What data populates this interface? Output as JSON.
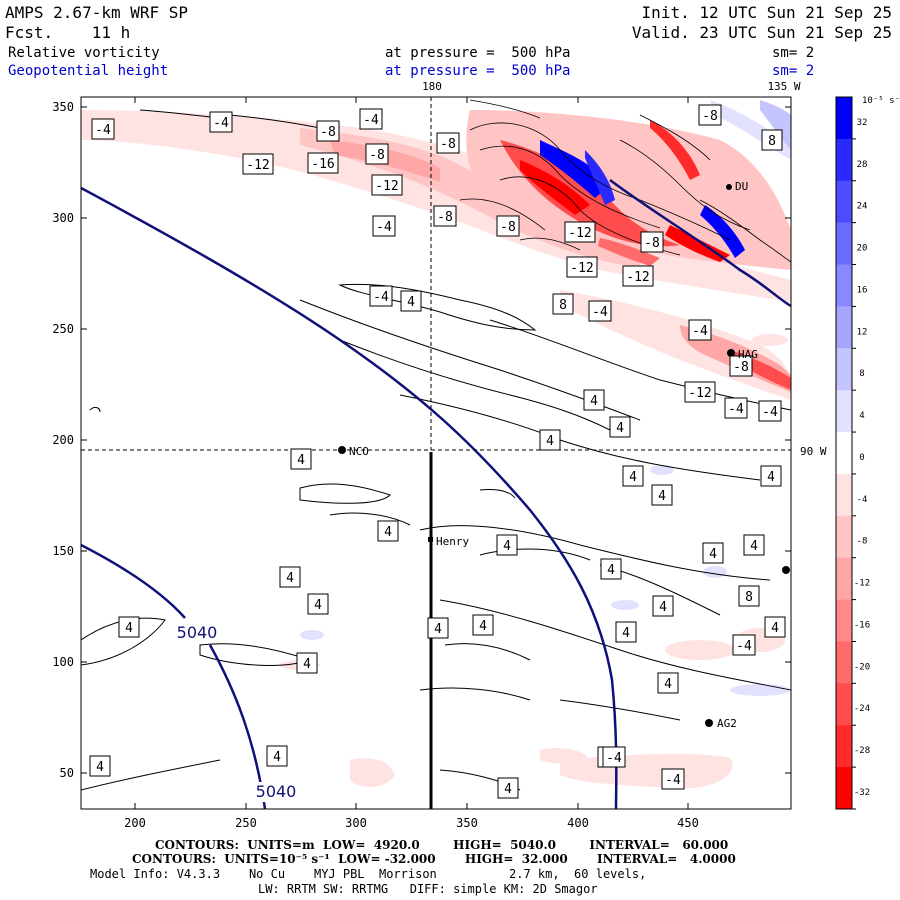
{
  "header": {
    "model": "AMPS 2.67-km WRF SP",
    "init": "Init. 12 UTC Sun 21 Sep 25",
    "fcst": "Fcst.    11 h",
    "valid": "Valid. 23 UTC Sun 21 Sep 25",
    "field1": "Relative vorticity",
    "field1_level": "at pressure =  500 hPa",
    "field1_sm": "sm= 2",
    "field2": "Geopotential height",
    "field2_level": "at pressure =  500 hPa",
    "field2_sm": "sm= 2"
  },
  "map": {
    "lon_labels": [
      "180",
      "135 W",
      "90 W"
    ],
    "x_ticks": [
      "200",
      "250",
      "300",
      "350",
      "400",
      "450"
    ],
    "y_ticks": [
      "50",
      "100",
      "150",
      "200",
      "250",
      "300",
      "350"
    ],
    "stations": [
      "NCO",
      "Henry",
      "HAG",
      "AG2",
      "DU"
    ],
    "height_contour_labels": [
      "5040",
      "5040"
    ],
    "vorticity_labels": [
      "-4",
      "-4",
      "-8",
      "-4",
      "-8",
      "-12",
      "-16",
      "-8",
      "-12",
      "-8",
      "-4",
      "-8",
      "-12",
      "-8",
      "-12",
      "-12",
      "-8",
      "8",
      "8",
      "-4",
      "-4",
      "-8",
      "-12",
      "-4",
      "-4",
      "-4",
      "4",
      "4",
      "4",
      "4",
      "4",
      "4",
      "4",
      "4",
      "4",
      "4",
      "4",
      "4",
      "4",
      "4",
      "4",
      "4",
      "4",
      "4",
      "4",
      "4",
      "4",
      "4",
      "4",
      "4",
      "4",
      "4",
      "8",
      "8",
      "4",
      "-4",
      "-4",
      "-4"
    ]
  },
  "colorbar": {
    "unit": "10⁻⁵ s⁻¹",
    "labels": [
      "32",
      "28",
      "24",
      "20",
      "16",
      "12",
      "8",
      "4",
      "0",
      "-4",
      "-8",
      "-12",
      "-16",
      "-20",
      "-24",
      "-28",
      "-32"
    ],
    "colors": [
      "#0000ff",
      "#2a2aff",
      "#4d4dff",
      "#6b6bff",
      "#8989ff",
      "#a6a6ff",
      "#c4c4ff",
      "#e2e2ff",
      "#ffffff",
      "#ffe2e2",
      "#ffc4c4",
      "#ffa6a6",
      "#ff8989",
      "#ff6b6b",
      "#ff4d4d",
      "#ff2a2a",
      "#ff0000"
    ]
  },
  "footer": {
    "contours1": "CONTOURS:  UNITS=m  LOW=  4920.0        HIGH=  5040.0        INTERVAL=   60.000",
    "contours2": "CONTOURS:  UNITS=10⁻⁵ s⁻¹  LOW= -32.000       HIGH=  32.000       INTERVAL=   4.0000",
    "info1": "Model Info: V4.3.3    No Cu    MYJ PBL  Morrison          2.7 km,  60 levels,",
    "info2": "LW: RRTM SW: RRTMG   DIFF: simple KM: 2D Smagor"
  }
}
